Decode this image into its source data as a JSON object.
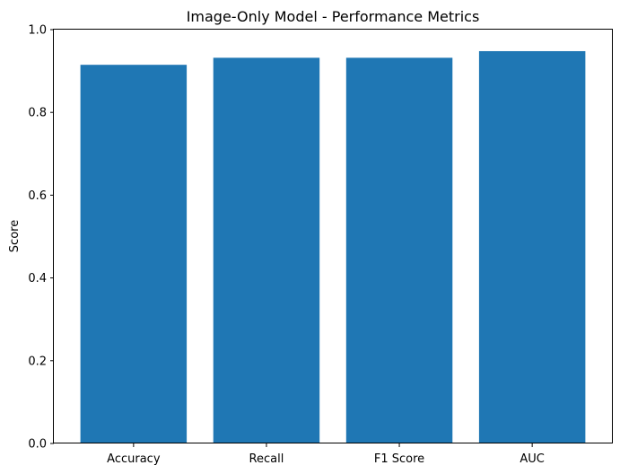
{
  "chart_data": {
    "type": "bar",
    "title": "Image-Only Model - Performance Metrics",
    "xlabel": "",
    "ylabel": "Score",
    "categories": [
      "Accuracy",
      "Recall",
      "F1 Score",
      "AUC"
    ],
    "values": [
      0.915,
      0.932,
      0.932,
      0.948
    ],
    "ylim": [
      0,
      1.0
    ],
    "yticks": [
      0.0,
      0.2,
      0.4,
      0.6,
      0.8,
      1.0
    ],
    "ytick_labels": [
      "0.0",
      "0.2",
      "0.4",
      "0.6",
      "0.8",
      "1.0"
    ],
    "bar_color": "#1f77b4",
    "grid": false,
    "legend": "none"
  }
}
